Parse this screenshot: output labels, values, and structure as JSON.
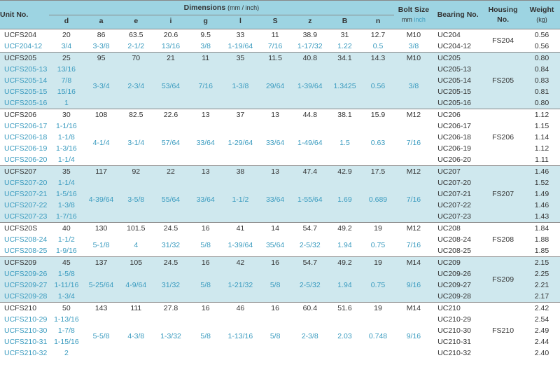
{
  "columns": {
    "unit": "Unit No.",
    "dimensions_title": "Dimensions",
    "dimensions_unit": "(mm / inch)",
    "dim_labels": [
      "d",
      "a",
      "e",
      "i",
      "g",
      "l",
      "S",
      "z",
      "B",
      "n"
    ],
    "bolt_title": "Bolt Size",
    "bolt_mm": "mm",
    "bolt_inch": "inch",
    "bearing": "Bearing No.",
    "housing": "Housing No.",
    "weight_title": "Weight",
    "weight_unit": "(kg)"
  },
  "groups": [
    {
      "housing": "FS204",
      "mm": {
        "unit": "UCFS204",
        "d": "20",
        "a": "86",
        "e": "63.5",
        "i": "20.6",
        "g": "9.5",
        "l": "33",
        "S": "11",
        "z": "38.9",
        "B": "31",
        "n": "12.7",
        "bolt": "M10",
        "bearing": "UC204",
        "wt": "0.56"
      },
      "inch_rows": [
        {
          "unit": "UCF204-12",
          "d": "3/4",
          "a": "3-3/8",
          "e": "2-1/2",
          "i": "13/16",
          "g": "3/8",
          "l": "1-19/64",
          "S": "7/16",
          "z": "1-17/32",
          "B": "1.22",
          "n": "0.5",
          "bolt": "3/8",
          "bearing": "UC204-12",
          "wt": "0.56"
        }
      ]
    },
    {
      "housing": "FS205",
      "mm": {
        "unit": "UCFS205",
        "d": "25",
        "a": "95",
        "e": "70",
        "i": "21",
        "g": "11",
        "l": "35",
        "S": "11.5",
        "z": "40.8",
        "B": "34.1",
        "n": "14.3",
        "bolt": "M10",
        "bearing": "UC205",
        "wt": "0.80"
      },
      "inch_shared": {
        "a": "3-3/4",
        "e": "2-3/4",
        "i": "53/64",
        "g": "7/16",
        "l": "1-3/8",
        "S": "29/64",
        "z": "1-39/64",
        "B": "1.3425",
        "n": "0.56",
        "bolt": "3/8"
      },
      "inch_rows": [
        {
          "unit": "UCFS205-13",
          "d": "13/16",
          "bearing": "UC205-13",
          "wt": "0.84"
        },
        {
          "unit": "UCFS205-14",
          "d": "7/8",
          "bearing": "UC205-14",
          "wt": "0.83"
        },
        {
          "unit": "UCFS205-15",
          "d": "15/16",
          "bearing": "UC205-15",
          "wt": "0.81"
        },
        {
          "unit": "UCFS205-16",
          "d": "1",
          "bearing": "UC205-16",
          "wt": "0.80"
        }
      ]
    },
    {
      "housing": "FS206",
      "mm": {
        "unit": "UCFS206",
        "d": "30",
        "a": "108",
        "e": "82.5",
        "i": "22.6",
        "g": "13",
        "l": "37",
        "S": "13",
        "z": "44.8",
        "B": "38.1",
        "n": "15.9",
        "bolt": "M12",
        "bearing": "UC206",
        "wt": "1.12"
      },
      "inch_shared": {
        "a": "4-1/4",
        "e": "3-1/4",
        "i": "57/64",
        "g": "33/64",
        "l": "1-29/64",
        "S": "33/64",
        "z": "1-49/64",
        "B": "1.5",
        "n": "0.63",
        "bolt": "7/16"
      },
      "inch_rows": [
        {
          "unit": "UCFS206-17",
          "d": "1-1/16",
          "bearing": "UC206-17",
          "wt": "1.15"
        },
        {
          "unit": "UCFS206-18",
          "d": "1-1/8",
          "bearing": "UC206-18",
          "wt": "1.14"
        },
        {
          "unit": "UCFS206-19",
          "d": "1-3/16",
          "bearing": "UC206-19",
          "wt": "1.12"
        },
        {
          "unit": "UCFS206-20",
          "d": "1-1/4",
          "bearing": "UC206-20",
          "wt": "1.11"
        }
      ]
    },
    {
      "housing": "FS207",
      "mm": {
        "unit": "UCFS207",
        "d": "35",
        "a": "117",
        "e": "92",
        "i": "22",
        "g": "13",
        "l": "38",
        "S": "13",
        "z": "47.4",
        "B": "42.9",
        "n": "17.5",
        "bolt": "M12",
        "bearing": "UC207",
        "wt": "1.46"
      },
      "inch_shared": {
        "a": "4-39/64",
        "e": "3-5/8",
        "i": "55/64",
        "g": "33/64",
        "l": "1-1/2",
        "S": "33/64",
        "z": "1-55/64",
        "B": "1.69",
        "n": "0.689",
        "bolt": "7/16"
      },
      "inch_rows": [
        {
          "unit": "UCFS207-20",
          "d": "1-1/4",
          "bearing": "UC207-20",
          "wt": "1.52"
        },
        {
          "unit": "UCFS207-21",
          "d": "1-5/16",
          "bearing": "UC207-21",
          "wt": "1.49"
        },
        {
          "unit": "UCFS207-22",
          "d": "1-3/8",
          "bearing": "UC207-22",
          "wt": "1.46"
        },
        {
          "unit": "UCFS207-23",
          "d": "1-7/16",
          "bearing": "UC207-23",
          "wt": "1.43"
        }
      ]
    },
    {
      "housing": "FS208",
      "mm": {
        "unit": "UCFS20S",
        "d": "40",
        "a": "130",
        "e": "101.5",
        "i": "24.5",
        "g": "16",
        "l": "41",
        "S": "14",
        "z": "54.7",
        "B": "49.2",
        "n": "19",
        "bolt": "M12",
        "bearing": "UC208",
        "wt": "1.84"
      },
      "inch_shared": {
        "a": "5-1/8",
        "e": "4",
        "i": "31/32",
        "g": "5/8",
        "l": "1-39/64",
        "S": "35/64",
        "z": "2-5/32",
        "B": "1.94",
        "n": "0.75",
        "bolt": "7/16"
      },
      "inch_rows": [
        {
          "unit": "UCFS208-24",
          "d": "1-1/2",
          "bearing": "UC208-24",
          "wt": "1.88"
        },
        {
          "unit": "UCFS208-25",
          "d": "1-9/16",
          "bearing": "UC208-25",
          "wt": "1.85"
        }
      ]
    },
    {
      "housing": "FS209",
      "mm": {
        "unit": "UCFS209",
        "d": "45",
        "a": "137",
        "e": "105",
        "i": "24.5",
        "g": "16",
        "l": "42",
        "S": "16",
        "z": "54.7",
        "B": "49.2",
        "n": "19",
        "bolt": "M14",
        "bearing": "UC209",
        "wt": "2.15"
      },
      "inch_shared": {
        "a": "5-25/64",
        "e": "4-9/64",
        "i": "31/32",
        "g": "5/8",
        "l": "1-21/32",
        "S": "5/8",
        "z": "2-5/32",
        "B": "1.94",
        "n": "0.75",
        "bolt": "9/16"
      },
      "inch_rows": [
        {
          "unit": "UCFS209-26",
          "d": "1-5/8",
          "bearing": "UC209-26",
          "wt": "2.25"
        },
        {
          "unit": "UCFS209-27",
          "d": "1-11/16",
          "bearing": "UC209-27",
          "wt": "2.21"
        },
        {
          "unit": "UCFS209-28",
          "d": "1-3/4",
          "bearing": "UC209-28",
          "wt": "2.17"
        }
      ]
    },
    {
      "housing": "FS210",
      "mm": {
        "unit": "UCFS210",
        "d": "50",
        "a": "143",
        "e": "111",
        "i": "27.8",
        "g": "16",
        "l": "46",
        "S": "16",
        "z": "60.4",
        "B": "51.6",
        "n": "19",
        "bolt": "M14",
        "bearing": "UC210",
        "wt": "2.42"
      },
      "inch_shared": {
        "a": "5-5/8",
        "e": "4-3/8",
        "i": "1-3/32",
        "g": "5/8",
        "l": "1-13/16",
        "S": "5/8",
        "z": "2-3/8",
        "B": "2.03",
        "n": "0.748",
        "bolt": "9/16"
      },
      "inch_rows": [
        {
          "unit": "UCFS210-29",
          "d": "1-13/16",
          "bearing": "UC210-29",
          "wt": "2.54"
        },
        {
          "unit": "UCFS210-30",
          "d": "1-7/8",
          "bearing": "UC210-30",
          "wt": "2.49"
        },
        {
          "unit": "UCFS210-31",
          "d": "1-15/16",
          "bearing": "UC210-31",
          "wt": "2.44"
        },
        {
          "unit": "UCFS210-32",
          "d": "2",
          "bearing": "UC210-32",
          "wt": "2.40"
        }
      ]
    }
  ],
  "colors": {
    "header_bg": "#9dd4e2",
    "stripe_bg": "#cfe8ee",
    "link": "#3a9bbf",
    "text": "#333333",
    "border": "#888888"
  }
}
